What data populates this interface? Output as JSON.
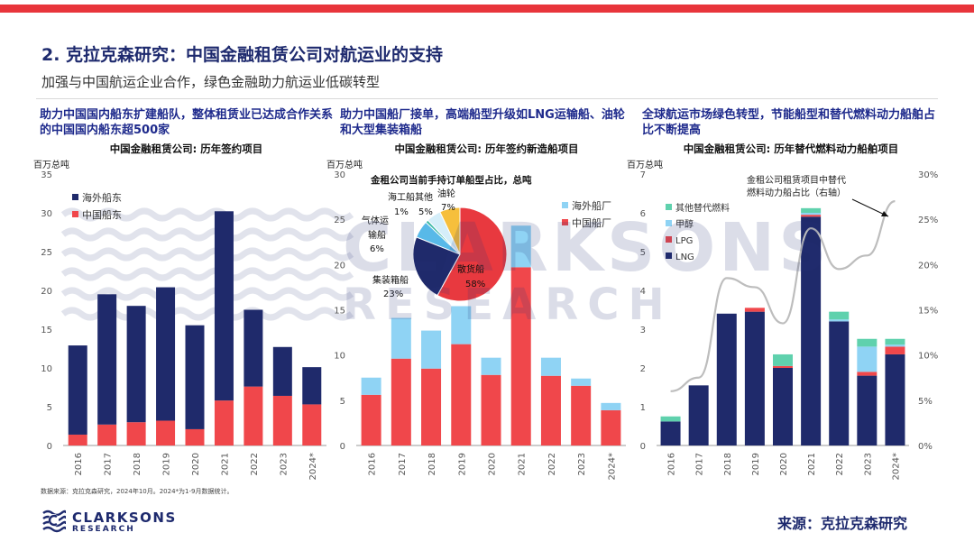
{
  "header": {
    "title": "2. 克拉克森研究：中国金融租赁公司对航运业的支持",
    "subtitle": "加强与中国航运企业合作，绿色金融助力航运业低碳转型"
  },
  "panels": [
    {
      "heading": "助力中国国内船东扩建船队，整体租赁业已达成合作关系的中国国内船东超500家"
    },
    {
      "heading": "助力中国船厂接单，高端船型升级如LNG运输船、油轮和大型集装箱船"
    },
    {
      "heading": "全球航运市场绿色转型，节能船型和替代燃料动力船舶占比不断提高"
    }
  ],
  "watermark": {
    "word": "CLARKSONS",
    "sub": "RESEARCH"
  },
  "chart_data": [
    {
      "type": "bar",
      "stacked": true,
      "title": "中国金融租赁公司: 历年签约项目",
      "ylabel": "百万总吨",
      "ylim": [
        0,
        35
      ],
      "yticks": [
        0,
        5,
        10,
        15,
        20,
        25,
        30,
        35
      ],
      "categories": [
        "2016",
        "2017",
        "2018",
        "2019",
        "2020",
        "2021",
        "2022",
        "2023",
        "2024*"
      ],
      "series": [
        {
          "name": "中国船东",
          "color": "#f0474b",
          "values": [
            1.4,
            2.7,
            3.0,
            3.2,
            2.1,
            5.8,
            7.6,
            6.4,
            5.3
          ]
        },
        {
          "name": "海外船东",
          "color": "#1f2a6b",
          "values": [
            11.5,
            16.8,
            15.0,
            17.2,
            13.4,
            24.4,
            9.9,
            6.3,
            4.8
          ]
        }
      ],
      "legend": [
        "海外船东",
        "中国船东"
      ],
      "legend_position": "top-left"
    },
    {
      "type": "bar",
      "stacked": true,
      "title": "中国金融租赁公司: 历年签约新造船项目",
      "ylabel": "百万总吨",
      "ylim": [
        0,
        30
      ],
      "yticks": [
        0,
        5,
        10,
        15,
        20,
        25,
        30
      ],
      "categories": [
        "2016",
        "2017",
        "2018",
        "2019",
        "2020",
        "2021",
        "2022",
        "2023",
        "2024*"
      ],
      "series": [
        {
          "name": "中国船厂",
          "color": "#f0474b",
          "values": [
            5.6,
            9.6,
            8.5,
            11.2,
            7.8,
            19.7,
            7.7,
            6.6,
            3.9
          ]
        },
        {
          "name": "海外船厂",
          "color": "#8fd3f4",
          "values": [
            1.9,
            4.5,
            4.2,
            4.2,
            1.9,
            4.6,
            2.0,
            0.8,
            0.8
          ]
        }
      ],
      "legend": [
        "海外船厂",
        "中国船厂"
      ],
      "legend_position": "top-right",
      "inset_pie": {
        "type": "pie",
        "title": "金租公司当前手持订单船型占比，总吨",
        "slices": [
          {
            "name": "散货船",
            "value": 58,
            "label": "58%",
            "color": "#e8393f"
          },
          {
            "name": "集装箱船",
            "value": 23,
            "label": "23%",
            "color": "#1f2a6b"
          },
          {
            "name": "气体运输船",
            "value": 6,
            "label": "6%",
            "color": "#58b9e8"
          },
          {
            "name": "海工船",
            "value": 1,
            "label": "1%",
            "color": "#3bb8a5"
          },
          {
            "name": "其他",
            "value": 5,
            "label": "5%",
            "color": "#d5eef9"
          },
          {
            "name": "油轮",
            "value": 7,
            "label": "7%",
            "color": "#f6bf3c"
          }
        ],
        "label_lines": {
          "bulk": [
            "散货船",
            "58%"
          ],
          "container": [
            "集装箱船",
            "23%"
          ],
          "gas": [
            "气体运",
            "输船",
            "6%"
          ],
          "offshore": [
            "海工船",
            "1%"
          ],
          "other": [
            "其他",
            "5%"
          ],
          "tanker": [
            "油轮",
            "7%"
          ]
        }
      }
    },
    {
      "type": "bar",
      "stacked": true,
      "title": "中国金融租赁公司: 历年替代燃料动力船舶项目",
      "ylabel": "百万总吨",
      "ylim": [
        0,
        7
      ],
      "yticks": [
        0,
        1,
        2,
        3,
        4,
        5,
        6,
        7
      ],
      "y2lim": [
        0,
        30
      ],
      "y2ticks": [
        "0%",
        "5%",
        "10%",
        "15%",
        "20%",
        "25%",
        "30%"
      ],
      "categories": [
        "2016",
        "2017",
        "2018",
        "2019",
        "2020",
        "2021",
        "2022",
        "2023",
        "2024*"
      ],
      "series": [
        {
          "name": "LNG",
          "color": "#1f2a6b",
          "values": [
            0.62,
            1.55,
            3.4,
            3.45,
            2.0,
            5.9,
            3.2,
            1.8,
            2.35
          ]
        },
        {
          "name": "LPG",
          "color": "#f0474b",
          "values": [
            0,
            0,
            0,
            0.1,
            0.05,
            0.05,
            0,
            0.1,
            0.2
          ]
        },
        {
          "name": "甲醇",
          "color": "#8fd3f4",
          "values": [
            0,
            0,
            0,
            0,
            0,
            0.05,
            0.05,
            0.65,
            0.05
          ]
        },
        {
          "name": "其他替代燃料",
          "color": "#5fd1ad",
          "values": [
            0.13,
            0,
            0,
            0,
            0.3,
            0.12,
            0.2,
            0.2,
            0.15
          ]
        }
      ],
      "legend": [
        "其他替代燃料",
        "甲醇",
        "LPG",
        "LNG"
      ],
      "legend_position": "top-left",
      "line": {
        "name": "金租公司租赁项目中替代燃料动力船占比（右轴）",
        "label_lines": [
          "金租公司租赁项目中替代",
          "燃料动力船占比（右轴）"
        ],
        "color": "#bdbdbd",
        "axis": "right",
        "values": [
          6,
          7.5,
          18.5,
          17.5,
          13.5,
          24,
          19.5,
          21,
          27
        ]
      }
    }
  ],
  "footer": {
    "footnote": "数据来源：克拉克森研究，2024年10月。2024*为1-9月数据统计。",
    "logo_name": "CLARKSONS",
    "logo_sub": "RESEARCH",
    "source": "来源：克拉克森研究"
  }
}
